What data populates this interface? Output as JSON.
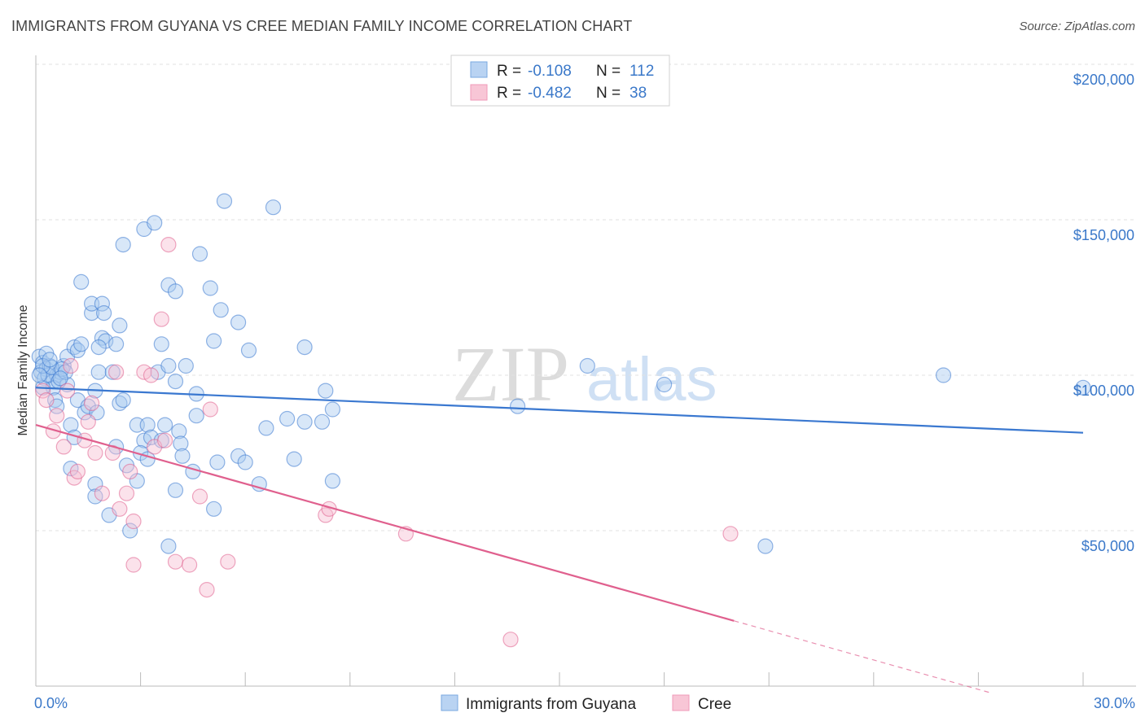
{
  "header": {
    "title": "IMMIGRANTS FROM GUYANA VS CREE MEDIAN FAMILY INCOME CORRELATION CHART",
    "source": "Source: ZipAtlas.com"
  },
  "watermark": {
    "zip": "ZIP",
    "atlas": "atlas"
  },
  "legend": {
    "rows": [
      {
        "r_label": "R =",
        "r_value": "-0.108",
        "n_label": "N =",
        "n_value": "112",
        "color": "#8fb8ea"
      },
      {
        "r_label": "R =",
        "r_value": "-0.482",
        "n_label": "N =",
        "n_value": "38",
        "color": "#f3a8c0"
      }
    ]
  },
  "bottom_legend": {
    "items": [
      {
        "label": "Immigrants from Guyana",
        "color": "#8fb8ea"
      },
      {
        "label": "Cree",
        "color": "#f3a8c0"
      }
    ]
  },
  "chart_data": {
    "type": "scatter",
    "title": "IMMIGRANTS FROM GUYANA VS CREE MEDIAN FAMILY INCOME CORRELATION CHART",
    "xlabel": "",
    "ylabel": "Median Family Income",
    "xlim": [
      0,
      30
    ],
    "ylim": [
      0,
      205000
    ],
    "x_tick_labels": [
      "0.0%",
      "30.0%"
    ],
    "y_ticks": [
      50000,
      100000,
      150000,
      200000
    ],
    "y_tick_labels": [
      "$50,000",
      "$100,000",
      "$150,000",
      "$200,000"
    ],
    "grid": true,
    "series": [
      {
        "name": "Immigrants from Guyana",
        "color": "#3a78d0",
        "fill": "#a9c9f0",
        "trend": {
          "x": [
            0,
            30
          ],
          "y": [
            96000,
            81500
          ],
          "dashed_x": null
        },
        "points": [
          [
            0.1,
            106000
          ],
          [
            0.2,
            104000
          ],
          [
            0.15,
            101000
          ],
          [
            0.3,
            102000
          ],
          [
            0.25,
            99000
          ],
          [
            0.4,
            103000
          ],
          [
            0.5,
            98000
          ],
          [
            0.6,
            100000
          ],
          [
            0.7,
            101000
          ],
          [
            0.8,
            103000
          ],
          [
            0.5,
            96000
          ],
          [
            0.55,
            92000
          ],
          [
            0.6,
            90000
          ],
          [
            0.9,
            97000
          ],
          [
            0.9,
            106000
          ],
          [
            1.1,
            109000
          ],
          [
            1.2,
            108000
          ],
          [
            1.3,
            110000
          ],
          [
            1.3,
            130000
          ],
          [
            1.6,
            120000
          ],
          [
            1.6,
            123000
          ],
          [
            1.9,
            112000
          ],
          [
            1.9,
            123000
          ],
          [
            1.95,
            120000
          ],
          [
            2.0,
            111000
          ],
          [
            1.8,
            109000
          ],
          [
            2.3,
            110000
          ],
          [
            2.4,
            116000
          ],
          [
            1.8,
            101000
          ],
          [
            2.2,
            101000
          ],
          [
            1.2,
            92000
          ],
          [
            1.4,
            88000
          ],
          [
            1.5,
            90000
          ],
          [
            1.7,
            95000
          ],
          [
            1.75,
            88000
          ],
          [
            2.4,
            91000
          ],
          [
            2.5,
            92000
          ],
          [
            2.9,
            84000
          ],
          [
            3.2,
            84000
          ],
          [
            3.7,
            84000
          ],
          [
            3.1,
            79000
          ],
          [
            3.3,
            80000
          ],
          [
            3.6,
            79000
          ],
          [
            4.1,
            82000
          ],
          [
            4.15,
            78000
          ],
          [
            1.0,
            84000
          ],
          [
            1.1,
            80000
          ],
          [
            2.3,
            77000
          ],
          [
            3.0,
            75000
          ],
          [
            3.2,
            73000
          ],
          [
            4.2,
            74000
          ],
          [
            4.5,
            69000
          ],
          [
            5.2,
            72000
          ],
          [
            5.8,
            74000
          ],
          [
            6.0,
            72000
          ],
          [
            6.4,
            65000
          ],
          [
            7.4,
            73000
          ],
          [
            8.5,
            66000
          ],
          [
            1.0,
            70000
          ],
          [
            1.7,
            65000
          ],
          [
            1.7,
            61000
          ],
          [
            2.1,
            55000
          ],
          [
            2.6,
            71000
          ],
          [
            2.9,
            66000
          ],
          [
            2.7,
            50000
          ],
          [
            4.0,
            63000
          ],
          [
            5.1,
            57000
          ],
          [
            3.8,
            45000
          ],
          [
            2.5,
            142000
          ],
          [
            3.1,
            147000
          ],
          [
            3.4,
            149000
          ],
          [
            3.6,
            110000
          ],
          [
            3.8,
            129000
          ],
          [
            4.0,
            127000
          ],
          [
            4.7,
            139000
          ],
          [
            5.0,
            128000
          ],
          [
            5.3,
            121000
          ],
          [
            5.1,
            111000
          ],
          [
            5.8,
            117000
          ],
          [
            6.1,
            108000
          ],
          [
            5.4,
            156000
          ],
          [
            6.8,
            154000
          ],
          [
            7.7,
            109000
          ],
          [
            3.5,
            101000
          ],
          [
            3.8,
            103000
          ],
          [
            4.3,
            103000
          ],
          [
            4.6,
            94000
          ],
          [
            4.0,
            98000
          ],
          [
            4.6,
            87000
          ],
          [
            6.6,
            83000
          ],
          [
            7.2,
            86000
          ],
          [
            7.7,
            85000
          ],
          [
            8.2,
            85000
          ],
          [
            8.3,
            95000
          ],
          [
            8.5,
            89000
          ],
          [
            13.8,
            90000
          ],
          [
            15.8,
            103000
          ],
          [
            18.0,
            97000
          ],
          [
            20.9,
            45000
          ],
          [
            26.0,
            100000
          ],
          [
            30.0,
            96000
          ],
          [
            0.2,
            96000
          ],
          [
            0.35,
            100000
          ],
          [
            0.45,
            102500
          ],
          [
            0.65,
            98000
          ],
          [
            0.75,
            102000
          ],
          [
            0.85,
            101000
          ],
          [
            0.3,
            107000
          ],
          [
            0.2,
            103000
          ],
          [
            0.1,
            100000
          ],
          [
            0.4,
            105000
          ],
          [
            0.7,
            99000
          ]
        ]
      },
      {
        "name": "Cree",
        "color": "#e0608e",
        "fill": "#f7bfd2",
        "trend": {
          "x": [
            0,
            20
          ],
          "y": [
            84000,
            21000
          ],
          "dashed_x": [
            20,
            27.3
          ]
        },
        "points": [
          [
            0.2,
            95000
          ],
          [
            0.3,
            92000
          ],
          [
            0.5,
            82000
          ],
          [
            0.6,
            87000
          ],
          [
            0.8,
            77000
          ],
          [
            0.9,
            95000
          ],
          [
            1.0,
            103000
          ],
          [
            1.1,
            67000
          ],
          [
            1.2,
            69000
          ],
          [
            1.4,
            79000
          ],
          [
            1.5,
            85000
          ],
          [
            1.6,
            91000
          ],
          [
            1.7,
            75000
          ],
          [
            1.9,
            62000
          ],
          [
            2.2,
            75000
          ],
          [
            2.3,
            101000
          ],
          [
            2.4,
            57000
          ],
          [
            2.6,
            62000
          ],
          [
            2.7,
            69000
          ],
          [
            2.8,
            53000
          ],
          [
            2.8,
            39000
          ],
          [
            3.1,
            101000
          ],
          [
            3.3,
            100000
          ],
          [
            3.4,
            77000
          ],
          [
            3.6,
            118000
          ],
          [
            3.7,
            79000
          ],
          [
            3.8,
            142000
          ],
          [
            4.0,
            40000
          ],
          [
            4.4,
            39000
          ],
          [
            4.7,
            61000
          ],
          [
            5.0,
            89000
          ],
          [
            4.9,
            31000
          ],
          [
            5.5,
            40000
          ],
          [
            8.3,
            55000
          ],
          [
            8.4,
            57000
          ],
          [
            10.6,
            49000
          ],
          [
            13.6,
            15000
          ],
          [
            19.9,
            49000
          ]
        ]
      }
    ]
  }
}
